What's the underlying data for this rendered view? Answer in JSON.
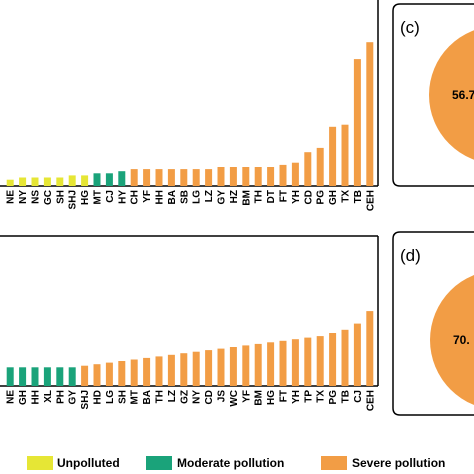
{
  "colors": {
    "unpolluted": "#e6e635",
    "moderate": "#1aa37a",
    "severe": "#f29d45",
    "axis": "#000000"
  },
  "legend": {
    "items": [
      {
        "key": "unpolluted",
        "label": "Unpolluted"
      },
      {
        "key": "moderate",
        "label": "Moderate pollution"
      },
      {
        "key": "severe",
        "label": "Severe pollution"
      }
    ]
  },
  "chart_data": [
    {
      "type": "bar",
      "panel": "top",
      "categories": [
        "NE",
        "NY",
        "NS",
        "GC",
        "SH",
        "SHJ",
        "HG",
        "MT",
        "CJ",
        "HY",
        "CH",
        "YF",
        "HH",
        "BA",
        "SB",
        "LG",
        "LZ",
        "GY",
        "HZ",
        "BM",
        "TH",
        "DT",
        "FT",
        "YH",
        "CD",
        "PG",
        "GH",
        "TX",
        "TB",
        "CEH"
      ],
      "classes": [
        "unpolluted",
        "unpolluted",
        "unpolluted",
        "unpolluted",
        "unpolluted",
        "unpolluted",
        "unpolluted",
        "moderate",
        "moderate",
        "moderate",
        "severe",
        "severe",
        "severe",
        "severe",
        "severe",
        "severe",
        "severe",
        "severe",
        "severe",
        "severe",
        "severe",
        "severe",
        "severe",
        "severe",
        "severe",
        "severe",
        "severe",
        "severe",
        "severe",
        "severe"
      ],
      "values": [
        3,
        4,
        4,
        4,
        4,
        5,
        5,
        6,
        6,
        7,
        8,
        8,
        8,
        8,
        8,
        8,
        8,
        9,
        9,
        9,
        9,
        9,
        10,
        11,
        16,
        18,
        28,
        29,
        60,
        68
      ],
      "ylim": [
        0,
        70
      ]
    },
    {
      "type": "bar",
      "panel": "bottom",
      "categories": [
        "NE",
        "GH",
        "HH",
        "XL",
        "PH",
        "GY",
        "SHJ",
        "HD",
        "LG",
        "SH",
        "MT",
        "BA",
        "TH",
        "LZ",
        "GZ",
        "NY",
        "CD",
        "JS",
        "WC",
        "YF",
        "BM",
        "HG",
        "FT",
        "YH",
        "TP",
        "TX",
        "PG",
        "TB",
        "CJ",
        "CEH"
      ],
      "classes": [
        "moderate",
        "moderate",
        "moderate",
        "moderate",
        "moderate",
        "moderate",
        "severe",
        "severe",
        "severe",
        "severe",
        "severe",
        "severe",
        "severe",
        "severe",
        "severe",
        "severe",
        "severe",
        "severe",
        "severe",
        "severe",
        "severe",
        "severe",
        "severe",
        "severe",
        "severe",
        "severe",
        "severe",
        "severe",
        "severe",
        "severe"
      ],
      "values": [
        12,
        12,
        12,
        12,
        12,
        12,
        13,
        14,
        15,
        16,
        17,
        18,
        19,
        20,
        21,
        22,
        23,
        24,
        25,
        26,
        27,
        28,
        29,
        30,
        31,
        32,
        34,
        36,
        40,
        48
      ],
      "ylim": [
        0,
        50
      ]
    },
    {
      "type": "pie",
      "panel": "(c)",
      "label": "56.7",
      "color": "severe"
    },
    {
      "type": "pie",
      "panel": "(d)",
      "label": "70.",
      "color": "severe"
    }
  ]
}
